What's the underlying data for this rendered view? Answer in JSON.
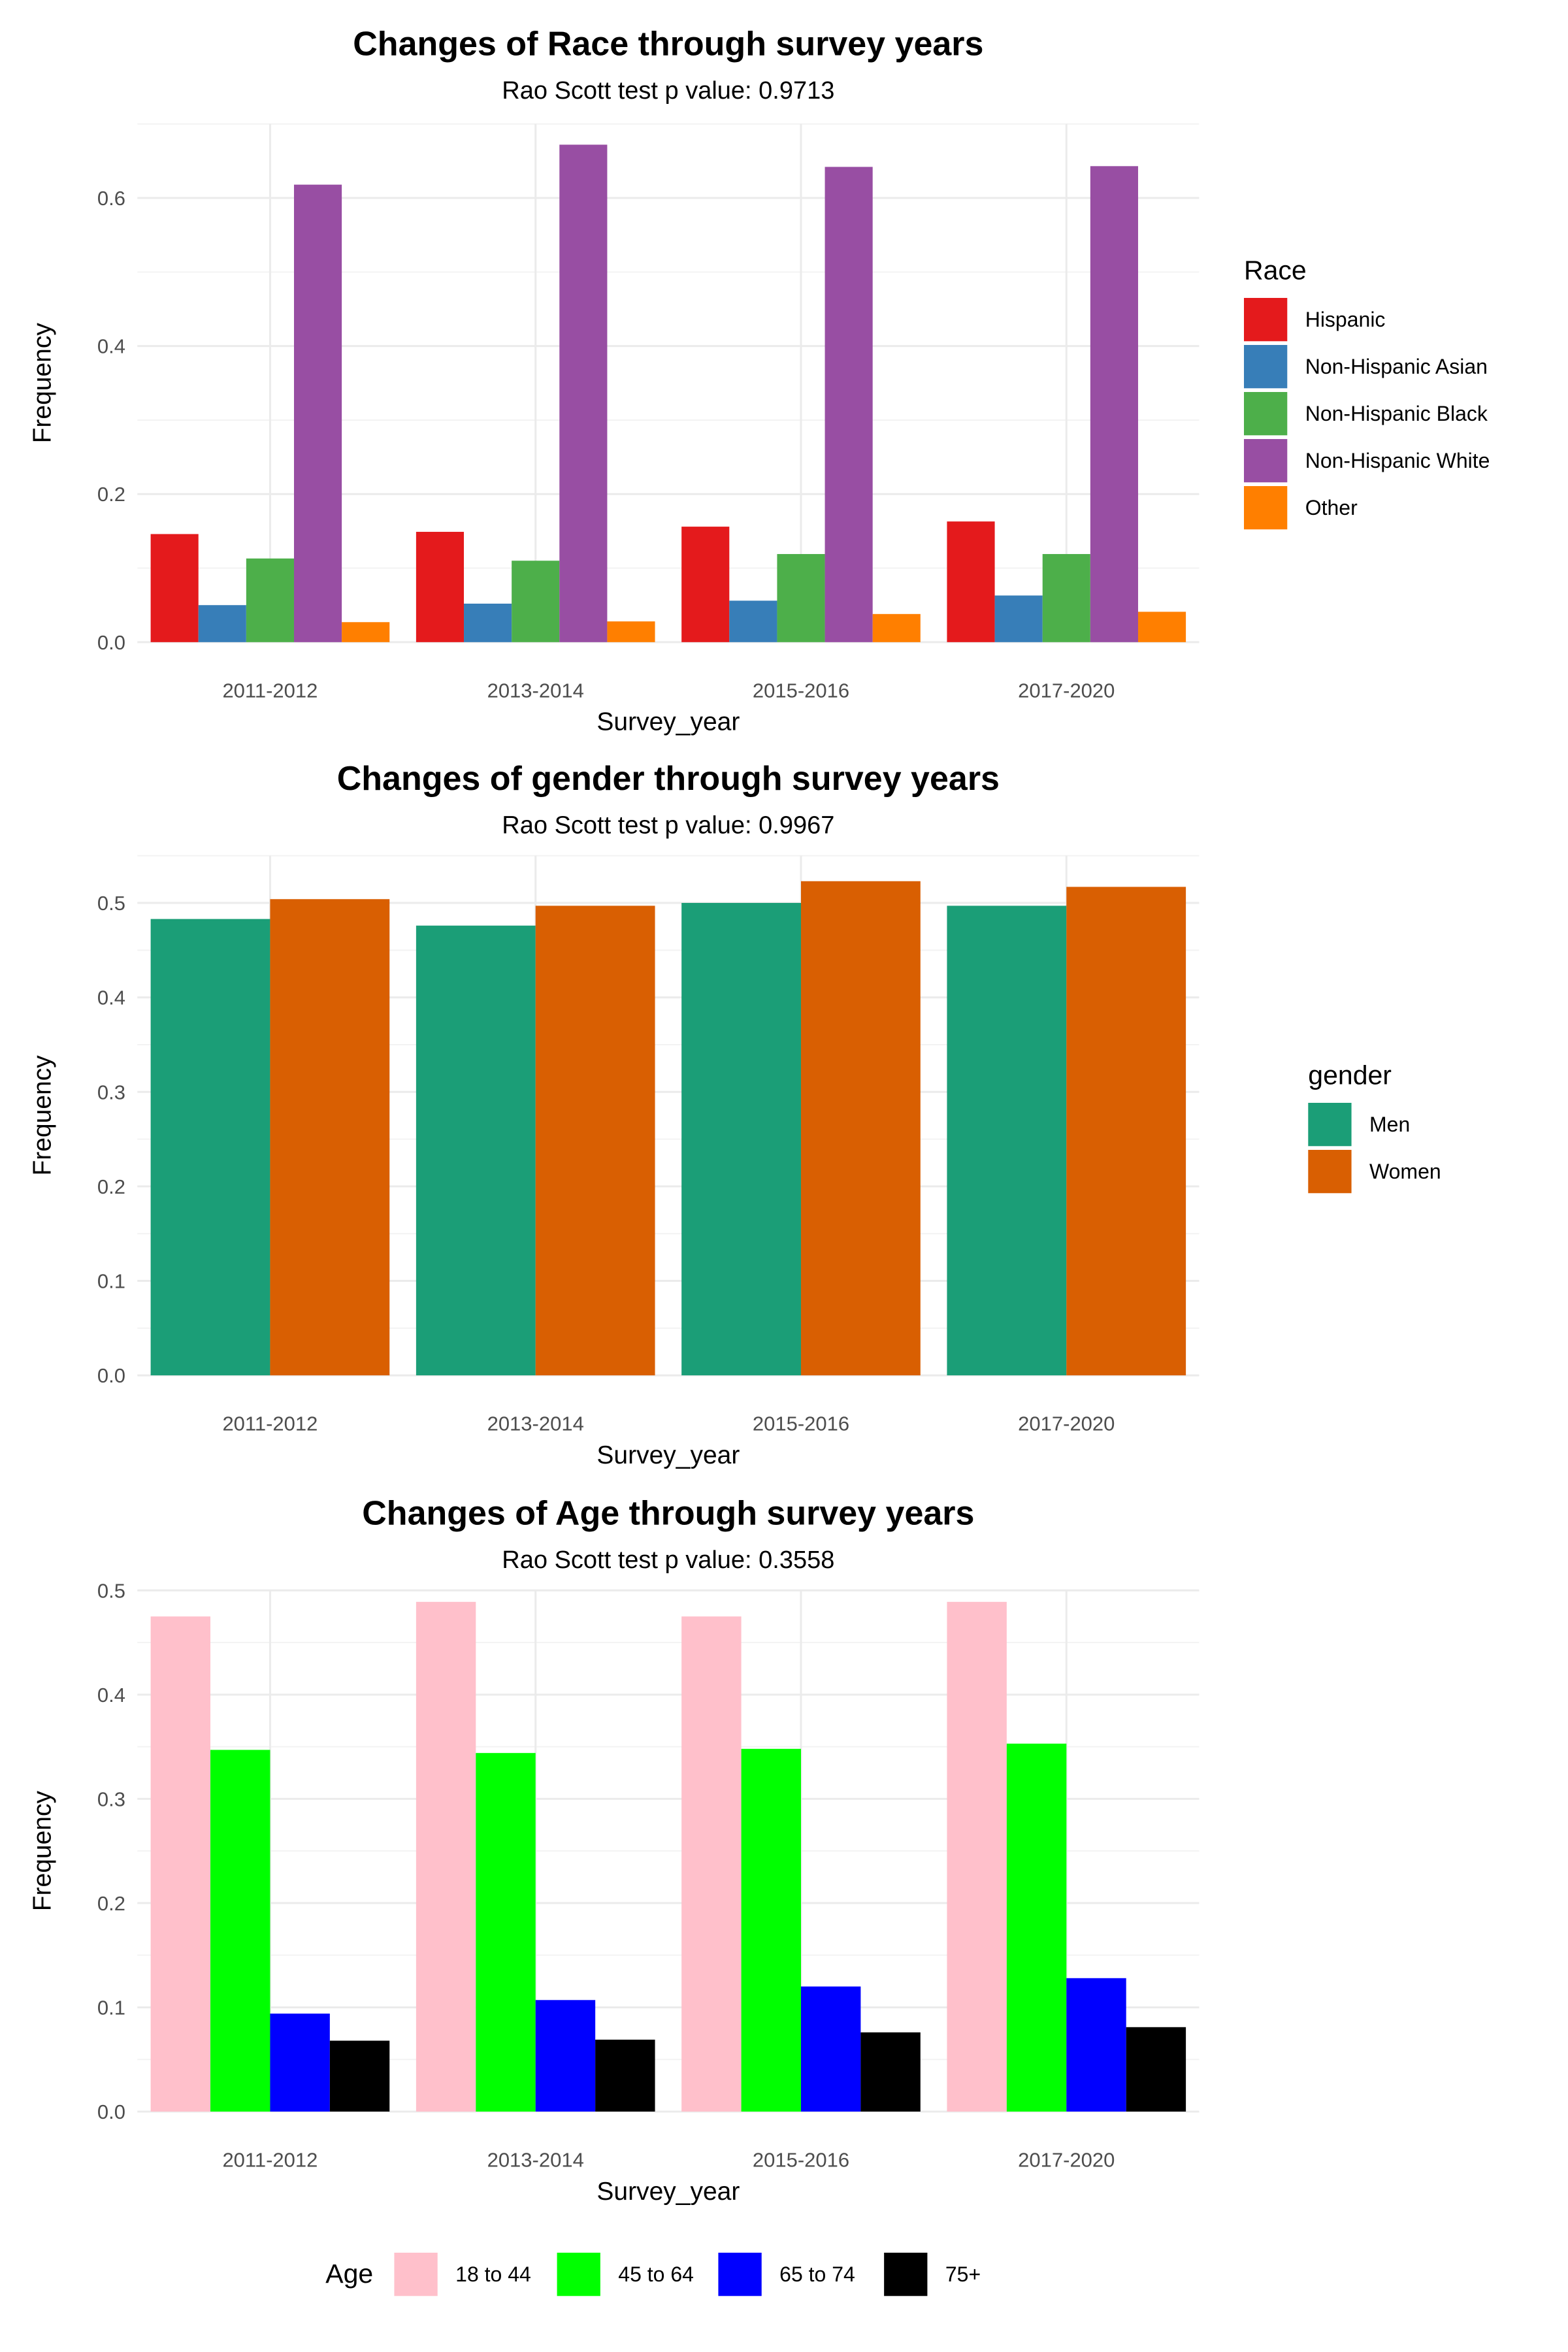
{
  "chart_data": [
    {
      "type": "bar",
      "title": "Changes of Race through survey years",
      "subtitle": "Rao Scott test p value: 0.9713",
      "xlabel": "Survey_year",
      "ylabel": "Frequency",
      "categories": [
        "2011-2012",
        "2013-2014",
        "2015-2016",
        "2017-2020"
      ],
      "ylim": [
        0,
        0.7
      ],
      "yticks": [
        0.0,
        0.2,
        0.4,
        0.6
      ],
      "ytick_labels": [
        "0.0",
        "0.2",
        "0.4",
        "0.6"
      ],
      "legend_title": "Race",
      "legend_position": "right",
      "grid": true,
      "series": [
        {
          "name": "Hispanic",
          "color": "#E41A1C",
          "values": [
            0.146,
            0.149,
            0.156,
            0.163
          ]
        },
        {
          "name": "Non-Hispanic Asian",
          "color": "#377EB8",
          "values": [
            0.05,
            0.052,
            0.056,
            0.063
          ]
        },
        {
          "name": "Non-Hispanic Black",
          "color": "#4DAF4A",
          "values": [
            0.113,
            0.11,
            0.119,
            0.119
          ]
        },
        {
          "name": "Non-Hispanic White",
          "color": "#984EA3",
          "values": [
            0.618,
            0.672,
            0.642,
            0.643
          ]
        },
        {
          "name": "Other",
          "color": "#FF7F00",
          "values": [
            0.027,
            0.028,
            0.038,
            0.041
          ]
        }
      ]
    },
    {
      "type": "bar",
      "title": "Changes of gender through survey years",
      "subtitle": "Rao Scott test p value: 0.9967",
      "xlabel": "Survey_year",
      "ylabel": "Frequency",
      "categories": [
        "2011-2012",
        "2013-2014",
        "2015-2016",
        "2017-2020"
      ],
      "ylim": [
        0,
        0.55
      ],
      "yticks": [
        0.0,
        0.1,
        0.2,
        0.3,
        0.4,
        0.5
      ],
      "ytick_labels": [
        "0.0",
        "0.1",
        "0.2",
        "0.3",
        "0.4",
        "0.5"
      ],
      "legend_title": "gender",
      "legend_position": "right",
      "grid": true,
      "series": [
        {
          "name": "Men",
          "color": "#1B9E77",
          "values": [
            0.483,
            0.476,
            0.5,
            0.497
          ]
        },
        {
          "name": "Women",
          "color": "#D95F02",
          "values": [
            0.504,
            0.497,
            0.523,
            0.517
          ]
        }
      ]
    },
    {
      "type": "bar",
      "title": "Changes of Age through survey years",
      "subtitle": "Rao Scott test p value: 0.3558",
      "xlabel": "Survey_year",
      "ylabel": "Frequency",
      "categories": [
        "2011-2012",
        "2013-2014",
        "2015-2016",
        "2017-2020"
      ],
      "ylim": [
        0,
        0.5
      ],
      "yticks": [
        0.0,
        0.1,
        0.2,
        0.3,
        0.4,
        0.5
      ],
      "ytick_labels": [
        "0.0",
        "0.1",
        "0.2",
        "0.3",
        "0.4",
        "0.5"
      ],
      "legend_title": "Age",
      "legend_position": "bottom",
      "grid": true,
      "series": [
        {
          "name": "18 to 44",
          "color": "#FFC0CB",
          "values": [
            0.475,
            0.489,
            0.475,
            0.489
          ]
        },
        {
          "name": "45 to 64",
          "color": "#00FF00",
          "values": [
            0.347,
            0.344,
            0.348,
            0.353
          ]
        },
        {
          "name": "65 to 74",
          "color": "#0000FF",
          "values": [
            0.094,
            0.107,
            0.12,
            0.128
          ]
        },
        {
          "name": "75+",
          "color": "#000000",
          "values": [
            0.068,
            0.069,
            0.076,
            0.081
          ]
        }
      ]
    }
  ]
}
